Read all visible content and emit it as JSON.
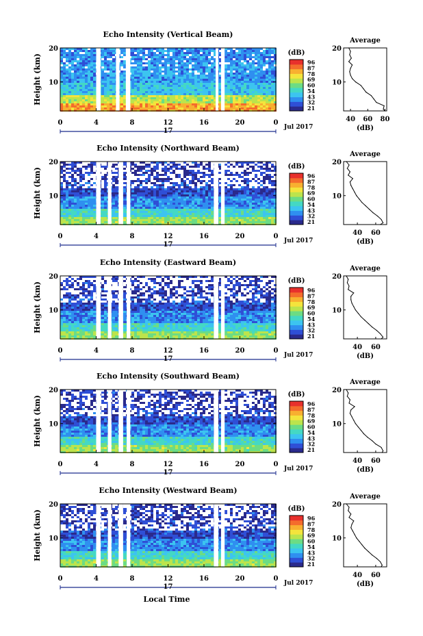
{
  "figure": {
    "shared_xlabel": "Local Time",
    "date_day": "17",
    "date_month": "Jul 2017",
    "xticks": [
      "0",
      "4",
      "8",
      "12",
      "16",
      "20",
      "0"
    ]
  },
  "colorbar": {
    "label": "(dB)",
    "ticks": [
      "96",
      "87",
      "78",
      "69",
      "60",
      "54",
      "43",
      "32",
      "21"
    ],
    "colors": [
      "#2a2a8c",
      "#2f4fd6",
      "#2f8ff0",
      "#3cc4f0",
      "#44d8c4",
      "#6cdc84",
      "#bce44c",
      "#f4e43c",
      "#f8b030",
      "#f46c2c",
      "#e8302c"
    ]
  },
  "chart_data": [
    {
      "type": "heatmap",
      "title": "Echo Intensity (Vertical Beam)",
      "ylabel": "Height (km)",
      "xlabel": "Local Time",
      "x_range_hours": [
        0,
        24
      ],
      "ylim_km": [
        1.5,
        20
      ],
      "yticks": [
        "20",
        "10"
      ],
      "color_range_dB": [
        21,
        96
      ],
      "data_gaps_hours": [
        [
          4.0,
          4.5
        ],
        [
          6.2,
          6.6
        ],
        [
          7.3,
          7.8
        ],
        [
          17.3,
          17.6
        ],
        [
          17.9,
          18.3
        ]
      ],
      "summary_bands": [
        {
          "height_km": [
            1.5,
            3.5
          ],
          "dB": 80
        },
        {
          "height_km": [
            3.5,
            6
          ],
          "dB": 66
        },
        {
          "height_km": [
            6,
            10
          ],
          "dB": 45
        },
        {
          "height_km": [
            10,
            16
          ],
          "dB": 40
        },
        {
          "height_km": [
            16,
            20
          ],
          "dB": 38
        }
      ],
      "average_profile": {
        "title": "Average",
        "xlabel": "(dB)",
        "xticks": [
          "40",
          "60",
          "80"
        ],
        "xlim": [
          32,
          82
        ],
        "height_km": [
          1.5,
          2,
          3,
          4,
          5,
          6,
          7,
          8,
          9,
          10,
          11,
          12,
          13,
          14,
          15,
          16,
          17,
          18,
          19,
          20
        ],
        "dB": [
          80,
          78,
          79,
          70,
          67,
          64,
          58,
          55,
          52,
          46,
          42,
          40,
          39,
          40,
          42,
          38,
          41,
          39,
          40,
          38
        ]
      }
    },
    {
      "type": "heatmap",
      "title": "Echo Intensity (Northward Beam)",
      "ylabel": "Height (km)",
      "xlabel": "Local Time",
      "x_range_hours": [
        0,
        24
      ],
      "ylim_km": [
        1.5,
        20
      ],
      "yticks": [
        "20",
        "10"
      ],
      "color_range_dB": [
        21,
        96
      ],
      "data_gaps_hours": [
        [
          4.0,
          4.5
        ],
        [
          5.3,
          5.7
        ],
        [
          6.5,
          7.0
        ],
        [
          7.4,
          7.8
        ],
        [
          17.1,
          17.6
        ],
        [
          17.9,
          18.3
        ]
      ],
      "summary_bands": [
        {
          "height_km": [
            1.5,
            4
          ],
          "dB": 62
        },
        {
          "height_km": [
            4,
            6
          ],
          "dB": 50
        },
        {
          "height_km": [
            6,
            10
          ],
          "dB": 38
        },
        {
          "height_km": [
            10,
            14
          ],
          "dB": 30
        },
        {
          "height_km": [
            14,
            20
          ],
          "dB": 28
        }
      ],
      "average_profile": {
        "title": "Average",
        "xlabel": "(dB)",
        "xticks": [
          "40",
          "60"
        ],
        "xlim": [
          25,
          72
        ],
        "height_km": [
          1.5,
          2,
          3,
          4,
          5,
          6,
          7,
          8,
          9,
          10,
          11,
          12,
          13,
          14,
          15,
          16,
          17,
          18,
          19,
          20
        ],
        "dB": [
          65,
          68,
          66,
          62,
          57,
          53,
          49,
          45,
          42,
          39,
          37,
          35,
          33,
          32,
          35,
          30,
          32,
          29,
          31,
          28
        ]
      }
    },
    {
      "type": "heatmap",
      "title": "Echo Intensity (Eastward Beam)",
      "ylabel": "Height (km)",
      "xlabel": "Local Time",
      "x_range_hours": [
        0,
        24
      ],
      "ylim_km": [
        1.5,
        20
      ],
      "yticks": [
        "20",
        "10"
      ],
      "color_range_dB": [
        21,
        96
      ],
      "data_gaps_hours": [
        [
          4.0,
          4.5
        ],
        [
          5.3,
          5.7
        ],
        [
          6.5,
          7.0
        ],
        [
          7.4,
          7.8
        ],
        [
          17.1,
          17.6
        ],
        [
          17.9,
          18.3
        ]
      ],
      "summary_bands": [
        {
          "height_km": [
            1.5,
            4
          ],
          "dB": 62
        },
        {
          "height_km": [
            4,
            6
          ],
          "dB": 50
        },
        {
          "height_km": [
            6,
            10
          ],
          "dB": 38
        },
        {
          "height_km": [
            10,
            14
          ],
          "dB": 30
        },
        {
          "height_km": [
            14,
            20
          ],
          "dB": 28
        }
      ],
      "average_profile": {
        "title": "Average",
        "xlabel": "(dB)",
        "xticks": [
          "40",
          "60"
        ],
        "xlim": [
          25,
          72
        ],
        "height_km": [
          1.5,
          2,
          3,
          4,
          5,
          6,
          7,
          8,
          9,
          10,
          11,
          12,
          13,
          14,
          15,
          16,
          17,
          18,
          19,
          20
        ],
        "dB": [
          66,
          68,
          65,
          61,
          56,
          52,
          48,
          44,
          41,
          38,
          36,
          34,
          33,
          33,
          36,
          30,
          31,
          29,
          30,
          28
        ]
      }
    },
    {
      "type": "heatmap",
      "title": "Echo Intensity (Southward Beam)",
      "ylabel": "Height (km)",
      "xlabel": "Local Time",
      "x_range_hours": [
        0,
        24
      ],
      "ylim_km": [
        1.5,
        20
      ],
      "yticks": [
        "20",
        "10"
      ],
      "color_range_dB": [
        21,
        96
      ],
      "data_gaps_hours": [
        [
          4.0,
          4.5
        ],
        [
          5.3,
          5.7
        ],
        [
          6.5,
          7.0
        ],
        [
          7.4,
          7.8
        ],
        [
          17.1,
          17.6
        ],
        [
          17.9,
          18.3
        ]
      ],
      "summary_bands": [
        {
          "height_km": [
            1.5,
            4
          ],
          "dB": 62
        },
        {
          "height_km": [
            4,
            6
          ],
          "dB": 50
        },
        {
          "height_km": [
            6,
            10
          ],
          "dB": 38
        },
        {
          "height_km": [
            10,
            14
          ],
          "dB": 30
        },
        {
          "height_km": [
            14,
            20
          ],
          "dB": 28
        }
      ],
      "average_profile": {
        "title": "Average",
        "xlabel": "(dB)",
        "xticks": [
          "40",
          "60"
        ],
        "xlim": [
          25,
          72
        ],
        "height_km": [
          1.5,
          2,
          3,
          4,
          5,
          6,
          7,
          8,
          9,
          10,
          11,
          12,
          13,
          14,
          15,
          16,
          17,
          18,
          19,
          20
        ],
        "dB": [
          67,
          68,
          66,
          60,
          56,
          51,
          47,
          44,
          41,
          38,
          36,
          34,
          32,
          33,
          37,
          31,
          32,
          29,
          30,
          28
        ]
      }
    },
    {
      "type": "heatmap",
      "title": "Echo Intensity (Westward Beam)",
      "ylabel": "Height (km)",
      "xlabel": "Local Time",
      "x_range_hours": [
        0,
        24
      ],
      "ylim_km": [
        1.5,
        20
      ],
      "yticks": [
        "20",
        "10"
      ],
      "color_range_dB": [
        21,
        96
      ],
      "data_gaps_hours": [
        [
          4.0,
          4.5
        ],
        [
          5.3,
          5.7
        ],
        [
          6.5,
          7.0
        ],
        [
          7.4,
          7.8
        ],
        [
          17.1,
          17.6
        ],
        [
          17.9,
          18.3
        ]
      ],
      "summary_bands": [
        {
          "height_km": [
            1.5,
            4
          ],
          "dB": 62
        },
        {
          "height_km": [
            4,
            6
          ],
          "dB": 50
        },
        {
          "height_km": [
            6,
            10
          ],
          "dB": 38
        },
        {
          "height_km": [
            10,
            14
          ],
          "dB": 30
        },
        {
          "height_km": [
            14,
            20
          ],
          "dB": 28
        }
      ],
      "average_profile": {
        "title": "Average",
        "xlabel": "(dB)",
        "xticks": [
          "40",
          "60"
        ],
        "xlim": [
          25,
          72
        ],
        "height_km": [
          1.5,
          2,
          3,
          4,
          5,
          6,
          7,
          8,
          9,
          10,
          11,
          12,
          13,
          14,
          15,
          16,
          17,
          18,
          19,
          20
        ],
        "dB": [
          66,
          67,
          65,
          61,
          56,
          52,
          48,
          45,
          42,
          39,
          37,
          35,
          33,
          34,
          36,
          31,
          33,
          30,
          31,
          28
        ]
      }
    }
  ]
}
